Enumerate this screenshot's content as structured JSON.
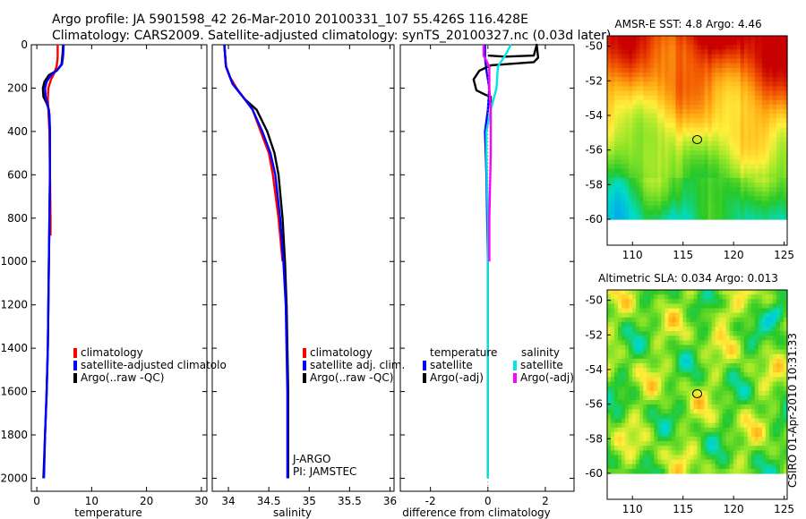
{
  "title": {
    "line1": "Argo profile: JA 5901598_42 26-Mar-2010 20100331_107 55.426S 116.428E",
    "line2": "Climatology: CARS2009. Satellite-adjusted climatology: synTS_20100327.nc (0.03d later)"
  },
  "side_label": "CSIRO 01-Apr-2010 10:31:33",
  "colors": {
    "red": "#ff0000",
    "blue": "#0000ff",
    "black": "#000000",
    "cyan": "#00e5e5",
    "magenta": "#ff00ff"
  },
  "chart_data": [
    {
      "type": "line",
      "id": "temperature",
      "xlabel": "temperature",
      "ylabel": "",
      "xlim": [
        -1,
        31
      ],
      "ylim": [
        2060,
        0
      ],
      "xticks": [
        "0",
        "10",
        "20",
        "30"
      ],
      "xtick_values": [
        0,
        10,
        20,
        30
      ],
      "yticks": [
        "0",
        "200",
        "400",
        "600",
        "800",
        "1000",
        "1200",
        "1400",
        "1600",
        "1800",
        "2000"
      ],
      "ytick_values": [
        0,
        200,
        400,
        600,
        800,
        1000,
        1200,
        1400,
        1600,
        1800,
        2000
      ],
      "legend": [
        "climatology",
        "satellite-adjusted climatolo",
        "Argo(..raw -QC)"
      ],
      "series": [
        {
          "name": "climatology",
          "color": "red",
          "points": [
            [
              3.8,
              0
            ],
            [
              3.8,
              60
            ],
            [
              3.6,
              100
            ],
            [
              3.2,
              130
            ],
            [
              2.6,
              160
            ],
            [
              2.1,
              200
            ],
            [
              2.0,
              250
            ],
            [
              2.1,
              300
            ],
            [
              2.3,
              400
            ],
            [
              2.4,
              600
            ],
            [
              2.5,
              800
            ],
            [
              2.5,
              880
            ]
          ]
        },
        {
          "name": "Argo(..raw -QC)",
          "color": "black",
          "points": [
            [
              4.8,
              0
            ],
            [
              4.7,
              40
            ],
            [
              4.5,
              90
            ],
            [
              3.6,
              120
            ],
            [
              2.2,
              140
            ],
            [
              1.4,
              170
            ],
            [
              1.1,
              200
            ],
            [
              1.2,
              240
            ],
            [
              1.8,
              270
            ],
            [
              2.2,
              300
            ],
            [
              2.4,
              400
            ],
            [
              2.4,
              600
            ],
            [
              2.3,
              800
            ],
            [
              2.2,
              1000
            ],
            [
              2.1,
              1200
            ],
            [
              2.0,
              1400
            ],
            [
              1.8,
              1600
            ],
            [
              1.5,
              1800
            ],
            [
              1.2,
              2000
            ]
          ]
        },
        {
          "name": "satellite-adjusted climatology",
          "color": "blue",
          "points": [
            [
              4.9,
              0
            ],
            [
              4.8,
              50
            ],
            [
              4.6,
              90
            ],
            [
              3.8,
              115
            ],
            [
              2.6,
              140
            ],
            [
              1.8,
              170
            ],
            [
              1.5,
              200
            ],
            [
              1.6,
              240
            ],
            [
              2.0,
              280
            ],
            [
              2.3,
              320
            ],
            [
              2.4,
              400
            ],
            [
              2.4,
              600
            ],
            [
              2.3,
              800
            ],
            [
              2.2,
              1000
            ],
            [
              2.1,
              1200
            ],
            [
              2.0,
              1400
            ],
            [
              1.8,
              1600
            ],
            [
              1.5,
              1800
            ],
            [
              1.3,
              2000
            ]
          ]
        }
      ]
    },
    {
      "type": "line",
      "id": "salinity",
      "xlabel": "salinity",
      "ylabel": "",
      "xlim": [
        33.8,
        36.05
      ],
      "ylim": [
        2060,
        0
      ],
      "xticks": [
        "34",
        "34.5",
        "35",
        "35.5",
        "36"
      ],
      "xtick_values": [
        34,
        34.5,
        35,
        35.5,
        36
      ],
      "legend": [
        "climatology",
        "satellite adj. clim.",
        "Argo(..raw -QC)"
      ],
      "annotations": [
        "J-ARGO",
        "PI: JAMSTEC"
      ],
      "series": [
        {
          "name": "climatology",
          "color": "red",
          "points": [
            [
              33.95,
              0
            ],
            [
              33.97,
              100
            ],
            [
              34.02,
              150
            ],
            [
              34.1,
              200
            ],
            [
              34.2,
              250
            ],
            [
              34.3,
              300
            ],
            [
              34.4,
              400
            ],
            [
              34.5,
              500
            ],
            [
              34.55,
              600
            ],
            [
              34.62,
              800
            ],
            [
              34.67,
              1000
            ]
          ]
        },
        {
          "name": "Argo(..raw -QC)",
          "color": "black",
          "points": [
            [
              33.95,
              0
            ],
            [
              33.97,
              100
            ],
            [
              34.05,
              180
            ],
            [
              34.2,
              250
            ],
            [
              34.35,
              300
            ],
            [
              34.48,
              400
            ],
            [
              34.57,
              500
            ],
            [
              34.62,
              600
            ],
            [
              34.67,
              800
            ],
            [
              34.7,
              1000
            ],
            [
              34.72,
              1200
            ],
            [
              34.73,
              1400
            ],
            [
              34.74,
              1600
            ],
            [
              34.74,
              1800
            ],
            [
              34.74,
              2000
            ]
          ]
        },
        {
          "name": "satellite adj. clim.",
          "color": "blue",
          "points": [
            [
              33.95,
              0
            ],
            [
              33.97,
              100
            ],
            [
              34.05,
              180
            ],
            [
              34.2,
              250
            ],
            [
              34.3,
              300
            ],
            [
              34.42,
              400
            ],
            [
              34.52,
              500
            ],
            [
              34.58,
              600
            ],
            [
              34.64,
              800
            ],
            [
              34.68,
              1000
            ],
            [
              34.71,
              1200
            ],
            [
              34.72,
              1400
            ],
            [
              34.73,
              1600
            ],
            [
              34.73,
              1800
            ],
            [
              34.73,
              2000
            ]
          ]
        }
      ]
    },
    {
      "type": "line",
      "id": "difference",
      "xlabel": "difference from climatology",
      "ylabel": "",
      "xlim": [
        -3.05,
        3.0
      ],
      "ylim": [
        2060,
        0
      ],
      "xticks": [
        "-2",
        "0",
        "2"
      ],
      "xtick_values": [
        -2,
        0,
        2
      ],
      "legend_headers": [
        "temperature",
        "salinity"
      ],
      "legend": [
        "satellite",
        "Argo(-adj)",
        "satellite",
        "Argo(-adj)"
      ],
      "series": [
        {
          "name": "temperature satellite",
          "color": "blue",
          "points": [
            [
              -0.1,
              0
            ],
            [
              -0.1,
              60
            ],
            [
              -0.05,
              120
            ],
            [
              0.05,
              200
            ],
            [
              0,
              300
            ],
            [
              -0.1,
              400
            ],
            [
              -0.05,
              600
            ],
            [
              0,
              1000
            ],
            [
              0,
              2000
            ]
          ]
        },
        {
          "name": "temperature Argo(-adj)",
          "color": "black",
          "points": [
            [
              0.0,
              50
            ],
            [
              0.6,
              55
            ],
            [
              1.6,
              50
            ],
            [
              1.7,
              0
            ],
            [
              1.75,
              60
            ],
            [
              1.6,
              80
            ],
            [
              0.6,
              90
            ],
            [
              0.1,
              95
            ],
            [
              -0.3,
              120
            ],
            [
              -0.5,
              160
            ],
            [
              -0.4,
              210
            ],
            [
              -0.1,
              230
            ],
            [
              0.1,
              240
            ],
            [
              0.1,
              300
            ]
          ]
        },
        {
          "name": "salinity satellite",
          "color": "cyan",
          "points": [
            [
              0.8,
              0
            ],
            [
              0.6,
              50
            ],
            [
              0.35,
              100
            ],
            [
              0.3,
              200
            ],
            [
              0.1,
              300
            ],
            [
              -0.05,
              400
            ],
            [
              -0.05,
              500
            ],
            [
              0,
              800
            ],
            [
              0,
              1000
            ],
            [
              0,
              1400
            ],
            [
              0,
              2000
            ]
          ]
        },
        {
          "name": "salinity Argo(-adj)",
          "color": "magenta",
          "points": [
            [
              -0.15,
              0
            ],
            [
              -0.15,
              50
            ],
            [
              0.05,
              100
            ],
            [
              0.05,
              200
            ],
            [
              0.1,
              300
            ],
            [
              0.1,
              400
            ],
            [
              0.1,
              500
            ],
            [
              0.05,
              800
            ],
            [
              0.05,
              1000
            ]
          ]
        }
      ]
    },
    {
      "type": "heatmap",
      "id": "sst",
      "title": "AMSR-E SST: 4.8 Argo: 4.46",
      "xlim": [
        107.5,
        125.3
      ],
      "ylim": [
        -61.5,
        -49.4
      ],
      "xticks": [
        "110",
        "115",
        "120",
        "125"
      ],
      "xtick_values": [
        110,
        115,
        120,
        125
      ],
      "yticks": [
        "-50",
        "-52",
        "-54",
        "-56",
        "-58",
        "-60"
      ],
      "ytick_values": [
        -50,
        -52,
        -54,
        -56,
        -58,
        -60
      ],
      "data_extent_lat": [
        -60,
        -49.4
      ],
      "marker": [
        116.4,
        -55.4
      ]
    },
    {
      "type": "heatmap",
      "id": "sla",
      "title": "Altimetric SLA: 0.034 Argo: 0.013",
      "xlim": [
        107.5,
        125.3
      ],
      "ylim": [
        -61.5,
        -49.4
      ],
      "xticks": [
        "110",
        "115",
        "120",
        "125"
      ],
      "xtick_values": [
        110,
        115,
        120,
        125
      ],
      "yticks": [
        "-50",
        "-52",
        "-54",
        "-56",
        "-58",
        "-60"
      ],
      "ytick_values": [
        -50,
        -52,
        -54,
        -56,
        -58,
        -60
      ],
      "data_extent_lat": [
        -60,
        -49.4
      ],
      "marker": [
        116.4,
        -55.4
      ]
    }
  ]
}
